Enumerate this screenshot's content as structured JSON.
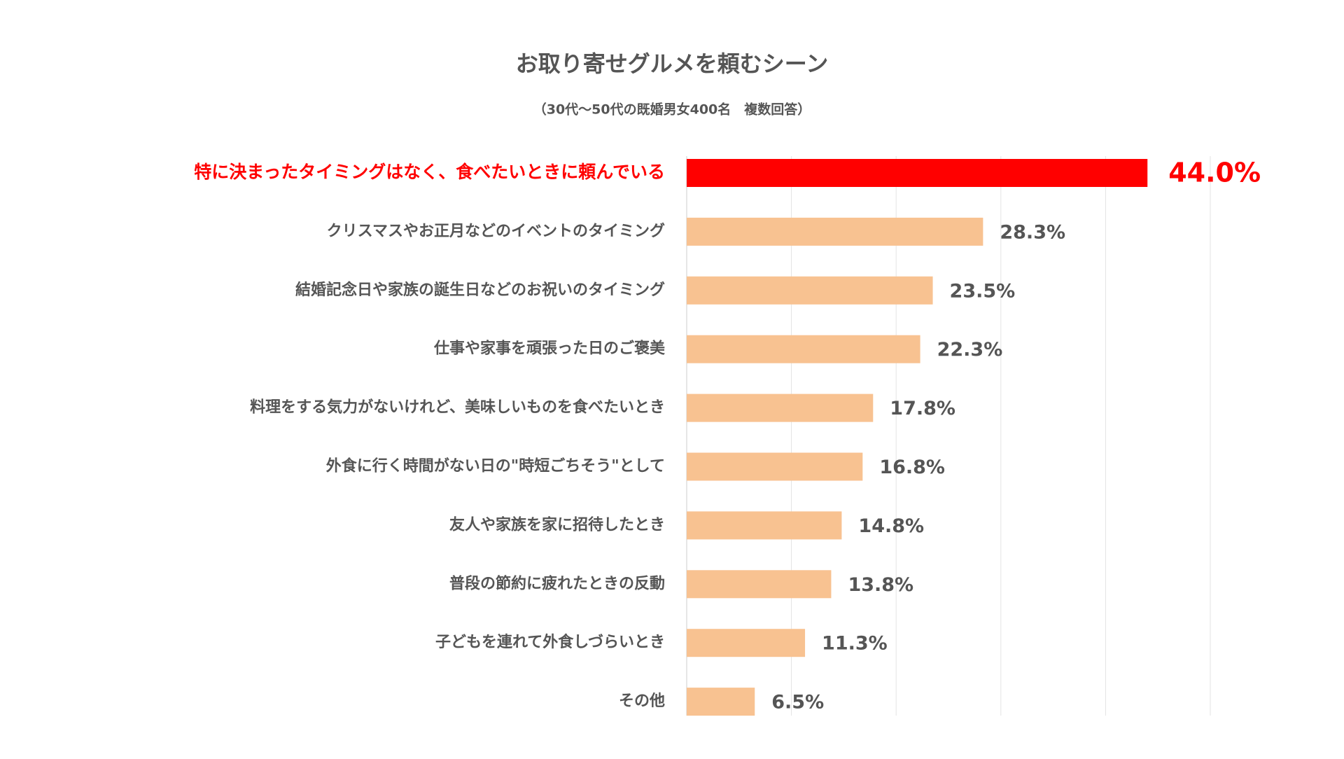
{
  "chart_data": {
    "type": "bar",
    "orientation": "horizontal",
    "title": "お取り寄せグルメを頼むシーン",
    "subtitle": "（30代～50代の既婚男女400名　複数回答）",
    "categories": [
      "特に決まったタイミングはなく、食べたいときに頼んでいる",
      "クリスマスやお正月などのイベントのタイミング",
      "結婚記念日や家族の誕生日などのお祝いのタイミング",
      "仕事や家事を頑張った日のご褒美",
      "料理をする気力がないけれど、美味しいものを食べたいとき",
      "外食に行く時間がない日の\"時短ごちそう\"として",
      "友人や家族を家に招待したとき",
      "普段の節約に疲れたときの反動",
      "子どもを連れて外食しづらいとき",
      "その他"
    ],
    "values": [
      44.0,
      28.3,
      23.5,
      22.3,
      17.8,
      16.8,
      14.8,
      13.8,
      11.3,
      6.5
    ],
    "value_labels": [
      "44.0%",
      "28.3%",
      "23.5%",
      "22.3%",
      "17.8%",
      "16.8%",
      "14.8%",
      "13.8%",
      "11.3%",
      "6.5%"
    ],
    "colors": [
      "#ff0000",
      "#f8c291",
      "#f8c291",
      "#f8c291",
      "#f8c291",
      "#f8c291",
      "#f8c291",
      "#f8c291",
      "#f8c291",
      "#f8c291"
    ],
    "text_colors": [
      "#ff0000",
      "#555555",
      "#555555",
      "#555555",
      "#555555",
      "#555555",
      "#555555",
      "#555555",
      "#555555",
      "#555555"
    ],
    "xlim": [
      0,
      50
    ],
    "xticks": [
      0,
      10,
      20,
      30,
      40,
      50
    ],
    "grid": true
  }
}
